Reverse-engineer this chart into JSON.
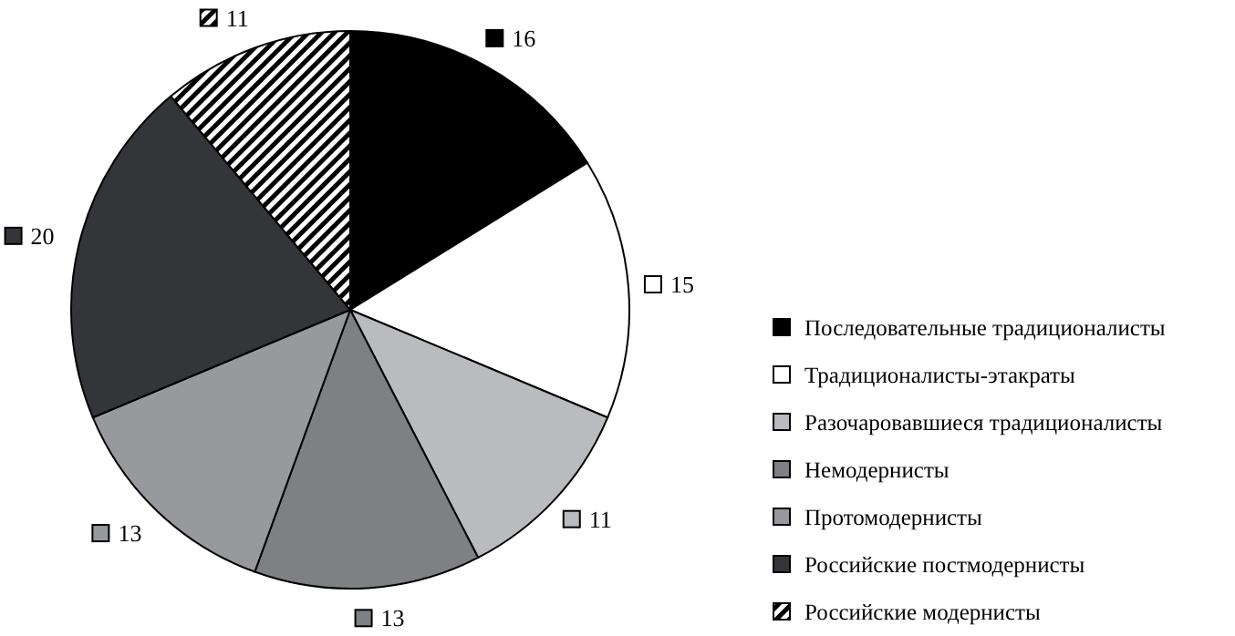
{
  "chart_data": {
    "type": "pie",
    "categories": [
      "Последовательные традиционалисты",
      "Традиционалисты-этакраты",
      "Разочаровавшиеся традиционалисты",
      "Немодернисты",
      "Протомодернисты",
      "Российские постмодернисты",
      "Российские модернисты"
    ],
    "values": [
      16,
      15,
      11,
      13,
      13,
      20,
      11
    ],
    "colors": [
      "#000000",
      "#ffffff",
      "#b9bbbe",
      "#7e8083",
      "#97999c",
      "#333538",
      "#000000"
    ],
    "data_labels": true,
    "legend": "right"
  }
}
